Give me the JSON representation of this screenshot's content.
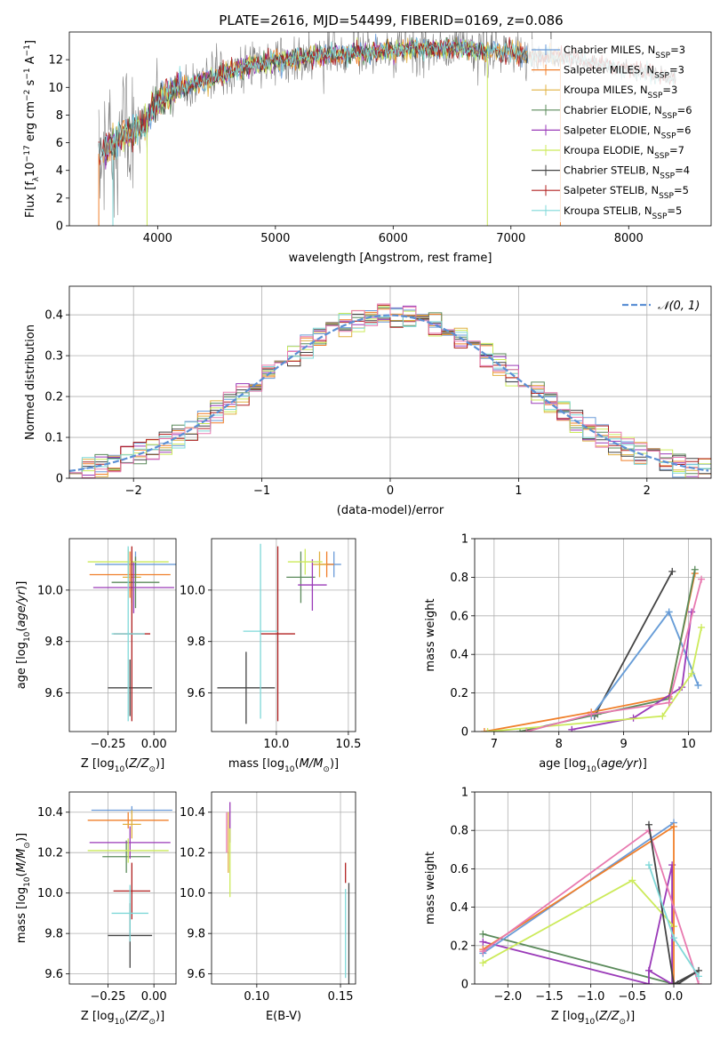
{
  "figure": {
    "title": "PLATE=2616, MJD=54499, FIBERID=0169, z=0.086"
  },
  "colors": {
    "Chabrier MILES": "#6a9bd8",
    "Salpeter MILES": "#f07f2a",
    "Kroupa MILES": "#e0b040",
    "Chabrier ELODIE": "#5a8a5a",
    "Salpeter ELODIE": "#9a3ab8",
    "Kroupa ELODIE": "#ccea5a",
    "Chabrier STELIB": "#444444",
    "Salpeter STELIB": "#b02020",
    "Kroupa STELIB": "#7fd8d8",
    "data": "#808080",
    "pink": "#e87ab0",
    "normal": "#5b8fd4"
  },
  "chart_data": [
    {
      "type": "line",
      "xlabel": "wavelength [Angstrom, rest frame]",
      "ylabel": "Flux [f_λ 10^-17 erg cm^-2 s^-1 A^-1]",
      "xlim": [
        3250,
        8700
      ],
      "ylim": [
        0,
        14
      ],
      "xticks": [
        4000,
        5000,
        6000,
        7000,
        8000
      ],
      "yticks": [
        0,
        2,
        4,
        6,
        8,
        10,
        12
      ],
      "legend_position": "upper right",
      "legend": [
        "Chabrier MILES, N_SSP=3",
        "Salpeter MILES, N_SSP=3",
        "Kroupa MILES, N_SSP=3",
        "Chabrier ELODIE, N_SSP=6",
        "Salpeter ELODIE, N_SSP=6",
        "Kroupa ELODIE, N_SSP=7",
        "Chabrier STELIB, N_SSP=4",
        "Salpeter STELIB, N_SSP=5",
        "Kroupa STELIB, N_SSP=5"
      ],
      "continuum": {
        "x": [
          3500,
          3700,
          3900,
          4000,
          4200,
          4500,
          4800,
          5000,
          5300,
          5600,
          6000,
          6300,
          6600,
          6800,
          7000,
          7200,
          7400,
          7600,
          7800,
          8000,
          8200,
          8400
        ],
        "y": [
          5.2,
          6.4,
          7.5,
          9.0,
          10.0,
          10.8,
          11.6,
          11.9,
          12.2,
          12.4,
          12.7,
          12.8,
          12.8,
          12.6,
          12.5,
          12.3,
          12.2,
          12.0,
          11.6,
          11.3,
          11.0,
          10.6
        ]
      }
    },
    {
      "type": "histogram",
      "xlabel": "(data-model)/error",
      "ylabel": "Normed distribution",
      "xlim": [
        -2.5,
        2.5
      ],
      "ylim": [
        0,
        0.47
      ],
      "xticks": [
        -2,
        -1,
        0,
        1,
        2
      ],
      "yticks": [
        0.0,
        0.1,
        0.2,
        0.3,
        0.4
      ],
      "legend": [
        "N(0,1)"
      ],
      "bin_width": 0.1,
      "normal_curve": {
        "mean": 0,
        "sigma": 1
      }
    },
    {
      "type": "scatter",
      "xlabel": "Z [log10(Z/Z_sun)]",
      "ylabel": "age  [log10(age/yr)]",
      "xlim": [
        -0.46,
        0.12
      ],
      "ylim": [
        9.45,
        10.2
      ],
      "xticks": [
        -0.25,
        0.0
      ],
      "xticklabels": [
        "−0.25",
        "0.00"
      ],
      "yticks": [
        9.6,
        9.8,
        10.0
      ],
      "yticklabels": [
        "9.6",
        "9.8",
        "10.0"
      ],
      "points": [
        {
          "model": "Chabrier MILES",
          "x": -0.1,
          "y": 10.1,
          "xerr": 0.22,
          "yerr": 0.05
        },
        {
          "model": "Salpeter MILES",
          "x": -0.13,
          "y": 10.06,
          "xerr": 0.22,
          "yerr": 0.09
        },
        {
          "model": "Kroupa MILES",
          "x": -0.12,
          "y": 10.05,
          "xerr": 0.05,
          "yerr": 0.1
        },
        {
          "model": "Chabrier ELODIE",
          "x": -0.1,
          "y": 10.03,
          "xerr": 0.13,
          "yerr": 0.1
        },
        {
          "model": "Salpeter ELODIE",
          "x": -0.11,
          "y": 10.01,
          "xerr": 0.22,
          "yerr": 0.1
        },
        {
          "model": "Kroupa ELODIE",
          "x": -0.14,
          "y": 10.11,
          "xerr": 0.22,
          "yerr": 0.05
        },
        {
          "model": "Chabrier STELIB",
          "x": -0.13,
          "y": 9.62,
          "xerr": 0.12,
          "yerr": 0.11
        },
        {
          "model": "Salpeter STELIB",
          "x": -0.12,
          "y": 9.83,
          "xerr": 0.1,
          "yerr": 0.34
        },
        {
          "model": "Kroupa STELIB",
          "x": -0.14,
          "y": 9.83,
          "xerr": 0.09,
          "yerr": 0.34
        }
      ]
    },
    {
      "type": "scatter",
      "xlabel": "mass [log10(M/M_sun)]",
      "ylabel": "",
      "xlim": [
        9.55,
        10.55
      ],
      "ylim": [
        9.45,
        10.2
      ],
      "xticks": [
        9.5,
        10.0,
        10.5
      ],
      "xticklabels": [
        "",
        "10.0",
        "10.5"
      ],
      "yticks": [
        9.6,
        9.8,
        10.0
      ],
      "yticklabels": [
        "9.6",
        "9.8",
        "10.0"
      ],
      "points": [
        {
          "model": "Chabrier MILES",
          "x": 10.4,
          "y": 10.1,
          "xerr": 0.05,
          "yerr": 0.05
        },
        {
          "model": "Salpeter MILES",
          "x": 10.35,
          "y": 10.1,
          "xerr": 0.05,
          "yerr": 0.05
        },
        {
          "model": "Kroupa MILES",
          "x": 10.3,
          "y": 10.1,
          "xerr": 0.05,
          "yerr": 0.05
        },
        {
          "model": "Chabrier ELODIE",
          "x": 10.17,
          "y": 10.05,
          "xerr": 0.1,
          "yerr": 0.1
        },
        {
          "model": "Salpeter ELODIE",
          "x": 10.25,
          "y": 10.02,
          "xerr": 0.1,
          "yerr": 0.1
        },
        {
          "model": "Kroupa ELODIE",
          "x": 10.2,
          "y": 10.11,
          "xerr": 0.12,
          "yerr": 0.05
        },
        {
          "model": "Chabrier STELIB",
          "x": 9.79,
          "y": 9.62,
          "xerr": 0.2,
          "yerr": 0.14
        },
        {
          "model": "Salpeter STELIB",
          "x": 10.01,
          "y": 9.83,
          "xerr": 0.12,
          "yerr": 0.34
        },
        {
          "model": "Kroupa STELIB",
          "x": 9.89,
          "y": 9.84,
          "xerr": 0.12,
          "yerr": 0.34
        }
      ]
    },
    {
      "type": "line",
      "xlabel": "age  [log10(age/yr)]",
      "ylabel": "mass weight",
      "xlim": [
        6.7,
        10.35
      ],
      "ylim": [
        0,
        1
      ],
      "xticks": [
        7,
        8,
        9,
        10
      ],
      "yticks": [
        0.0,
        0.2,
        0.4,
        0.6,
        0.8,
        1.0
      ],
      "series": [
        {
          "model": "Chabrier STELIB",
          "x": [
            8.55,
            9.75
          ],
          "y": [
            0.08,
            0.83
          ]
        },
        {
          "model": "Kroupa STELIB",
          "x": [
            8.5,
            9.7,
            10.15
          ],
          "y": [
            0.08,
            0.62,
            0.24
          ]
        },
        {
          "model": "Chabrier MILES",
          "x": [
            8.5,
            9.7,
            10.15
          ],
          "y": [
            0.08,
            0.62,
            0.24
          ]
        },
        {
          "model": "Salpeter MILES",
          "x": [
            6.85,
            8.5,
            9.7,
            10.1
          ],
          "y": [
            0.0,
            0.1,
            0.18,
            0.82
          ]
        },
        {
          "model": "Chabrier ELODIE",
          "x": [
            7.4,
            8.6,
            9.7,
            10.1
          ],
          "y": [
            0.0,
            0.09,
            0.17,
            0.84
          ]
        },
        {
          "model": "Salpeter ELODIE",
          "x": [
            8.2,
            9.15,
            9.9,
            10.05
          ],
          "y": [
            0.01,
            0.07,
            0.23,
            0.62
          ]
        },
        {
          "model": "Kroupa ELODIE",
          "x": [
            6.9,
            9.6,
            10.05,
            10.2
          ],
          "y": [
            0.0,
            0.08,
            0.3,
            0.54
          ]
        },
        {
          "model": "pink",
          "x": [
            7.5,
            8.5,
            9.7,
            10.2
          ],
          "y": [
            0.0,
            0.09,
            0.15,
            0.79
          ]
        }
      ]
    },
    {
      "type": "scatter",
      "xlabel": "Z [log10(Z/Z_sun)]",
      "ylabel": "mass [log10(M/M_sun)]",
      "xlim": [
        -0.46,
        0.12
      ],
      "ylim": [
        9.55,
        10.5
      ],
      "xticks": [
        -0.25,
        0.0
      ],
      "xticklabels": [
        "−0.25",
        "0.00"
      ],
      "yticks": [
        9.6,
        9.8,
        10.0,
        10.2,
        10.4
      ],
      "yticklabels": [
        "9.6",
        "9.8",
        "10.0",
        "10.2",
        "10.4"
      ],
      "points": [
        {
          "model": "Chabrier MILES",
          "x": -0.12,
          "y": 10.41,
          "xerr": 0.22,
          "yerr": 0.02
        },
        {
          "model": "Salpeter MILES",
          "x": -0.14,
          "y": 10.36,
          "xerr": 0.22,
          "yerr": 0.04
        },
        {
          "model": "Kroupa MILES",
          "x": -0.12,
          "y": 10.34,
          "xerr": 0.05,
          "yerr": 0.07
        },
        {
          "model": "Chabrier ELODIE",
          "x": -0.15,
          "y": 10.18,
          "xerr": 0.13,
          "yerr": 0.08
        },
        {
          "model": "Salpeter ELODIE",
          "x": -0.13,
          "y": 10.25,
          "xerr": 0.22,
          "yerr": 0.08
        },
        {
          "model": "Kroupa ELODIE",
          "x": -0.14,
          "y": 10.21,
          "xerr": 0.22,
          "yerr": 0.06
        },
        {
          "model": "Chabrier STELIB",
          "x": -0.13,
          "y": 9.79,
          "xerr": 0.12,
          "yerr": 0.16
        },
        {
          "model": "Salpeter STELIB",
          "x": -0.12,
          "y": 10.01,
          "xerr": 0.1,
          "yerr": 0.14
        },
        {
          "model": "Kroupa STELIB",
          "x": -0.13,
          "y": 9.9,
          "xerr": 0.1,
          "yerr": 0.14
        }
      ]
    },
    {
      "type": "scatter",
      "xlabel": "E(B-V)",
      "ylabel": "",
      "xlim": [
        0.073,
        0.159
      ],
      "ylim": [
        9.55,
        10.5
      ],
      "xticks": [
        0.1,
        0.15
      ],
      "xticklabels": [
        "0.10",
        "0.15"
      ],
      "yticks": [
        9.6,
        9.8,
        10.0,
        10.2,
        10.4
      ],
      "yticklabels": [
        "9.6",
        "9.8",
        "10.0",
        "10.2",
        "10.4"
      ],
      "points": [
        {
          "model": "pink",
          "x": 0.082,
          "y": 10.3,
          "yerr": 0.1
        },
        {
          "model": "Kroupa MILES",
          "x": 0.083,
          "y": 10.25,
          "yerr": 0.15
        },
        {
          "model": "Salpeter ELODIE",
          "x": 0.084,
          "y": 10.35,
          "yerr": 0.1
        },
        {
          "model": "Kroupa ELODIE",
          "x": 0.084,
          "y": 10.15,
          "yerr": 0.17
        },
        {
          "model": "Salpeter STELIB",
          "x": 0.153,
          "y": 10.1,
          "yerr": 0.05
        },
        {
          "model": "Kroupa STELIB",
          "x": 0.153,
          "y": 9.8,
          "yerr": 0.22
        },
        {
          "model": "Chabrier STELIB",
          "x": 0.155,
          "y": 9.8,
          "yerr": 0.25
        }
      ]
    },
    {
      "type": "line",
      "xlabel": "Z [log10(Z/Z_sun)]",
      "ylabel": "mass weight",
      "xlim": [
        -2.4,
        0.45
      ],
      "ylim": [
        0,
        1
      ],
      "xticks": [
        -2.0,
        -1.5,
        -1.0,
        -0.5,
        0.0
      ],
      "xticklabels": [
        "−2.0",
        "−1.5",
        "−1.0",
        "−0.5",
        "0.0"
      ],
      "yticks": [
        0.0,
        0.2,
        0.4,
        0.6,
        0.8,
        1.0
      ],
      "series": [
        {
          "model": "Chabrier ELODIE",
          "x": [
            -2.3,
            0.0
          ],
          "y": [
            0.26,
            0.0
          ]
        },
        {
          "model": "Salpeter ELODIE",
          "x": [
            -2.3,
            -0.3,
            -0.3,
            -0.02,
            -0.02,
            -0.3
          ],
          "y": [
            0.22,
            0.0,
            0.07,
            0.62,
            0.0,
            0.07
          ]
        },
        {
          "model": "Kroupa ELODIE",
          "x": [
            -2.3,
            -0.5,
            0.0
          ],
          "y": [
            0.11,
            0.54,
            0.3
          ]
        },
        {
          "model": "Chabrier MILES",
          "x": [
            -2.3,
            0.0
          ],
          "y": [
            0.16,
            0.84
          ]
        },
        {
          "model": "Salpeter MILES",
          "x": [
            -2.3,
            0.0,
            0.0
          ],
          "y": [
            0.18,
            0.82,
            0.0
          ]
        },
        {
          "model": "pink",
          "x": [
            -2.3,
            -0.3,
            0.3
          ],
          "y": [
            0.17,
            0.8,
            0.0
          ]
        },
        {
          "model": "Chabrier STELIB",
          "x": [
            -0.3,
            0.0,
            0.3,
            0.05
          ],
          "y": [
            0.83,
            0.0,
            0.07,
            0.0
          ]
        },
        {
          "model": "Kroupa STELIB",
          "x": [
            -0.3,
            0.0,
            0.3
          ],
          "y": [
            0.62,
            0.24,
            0.04
          ]
        }
      ]
    }
  ]
}
